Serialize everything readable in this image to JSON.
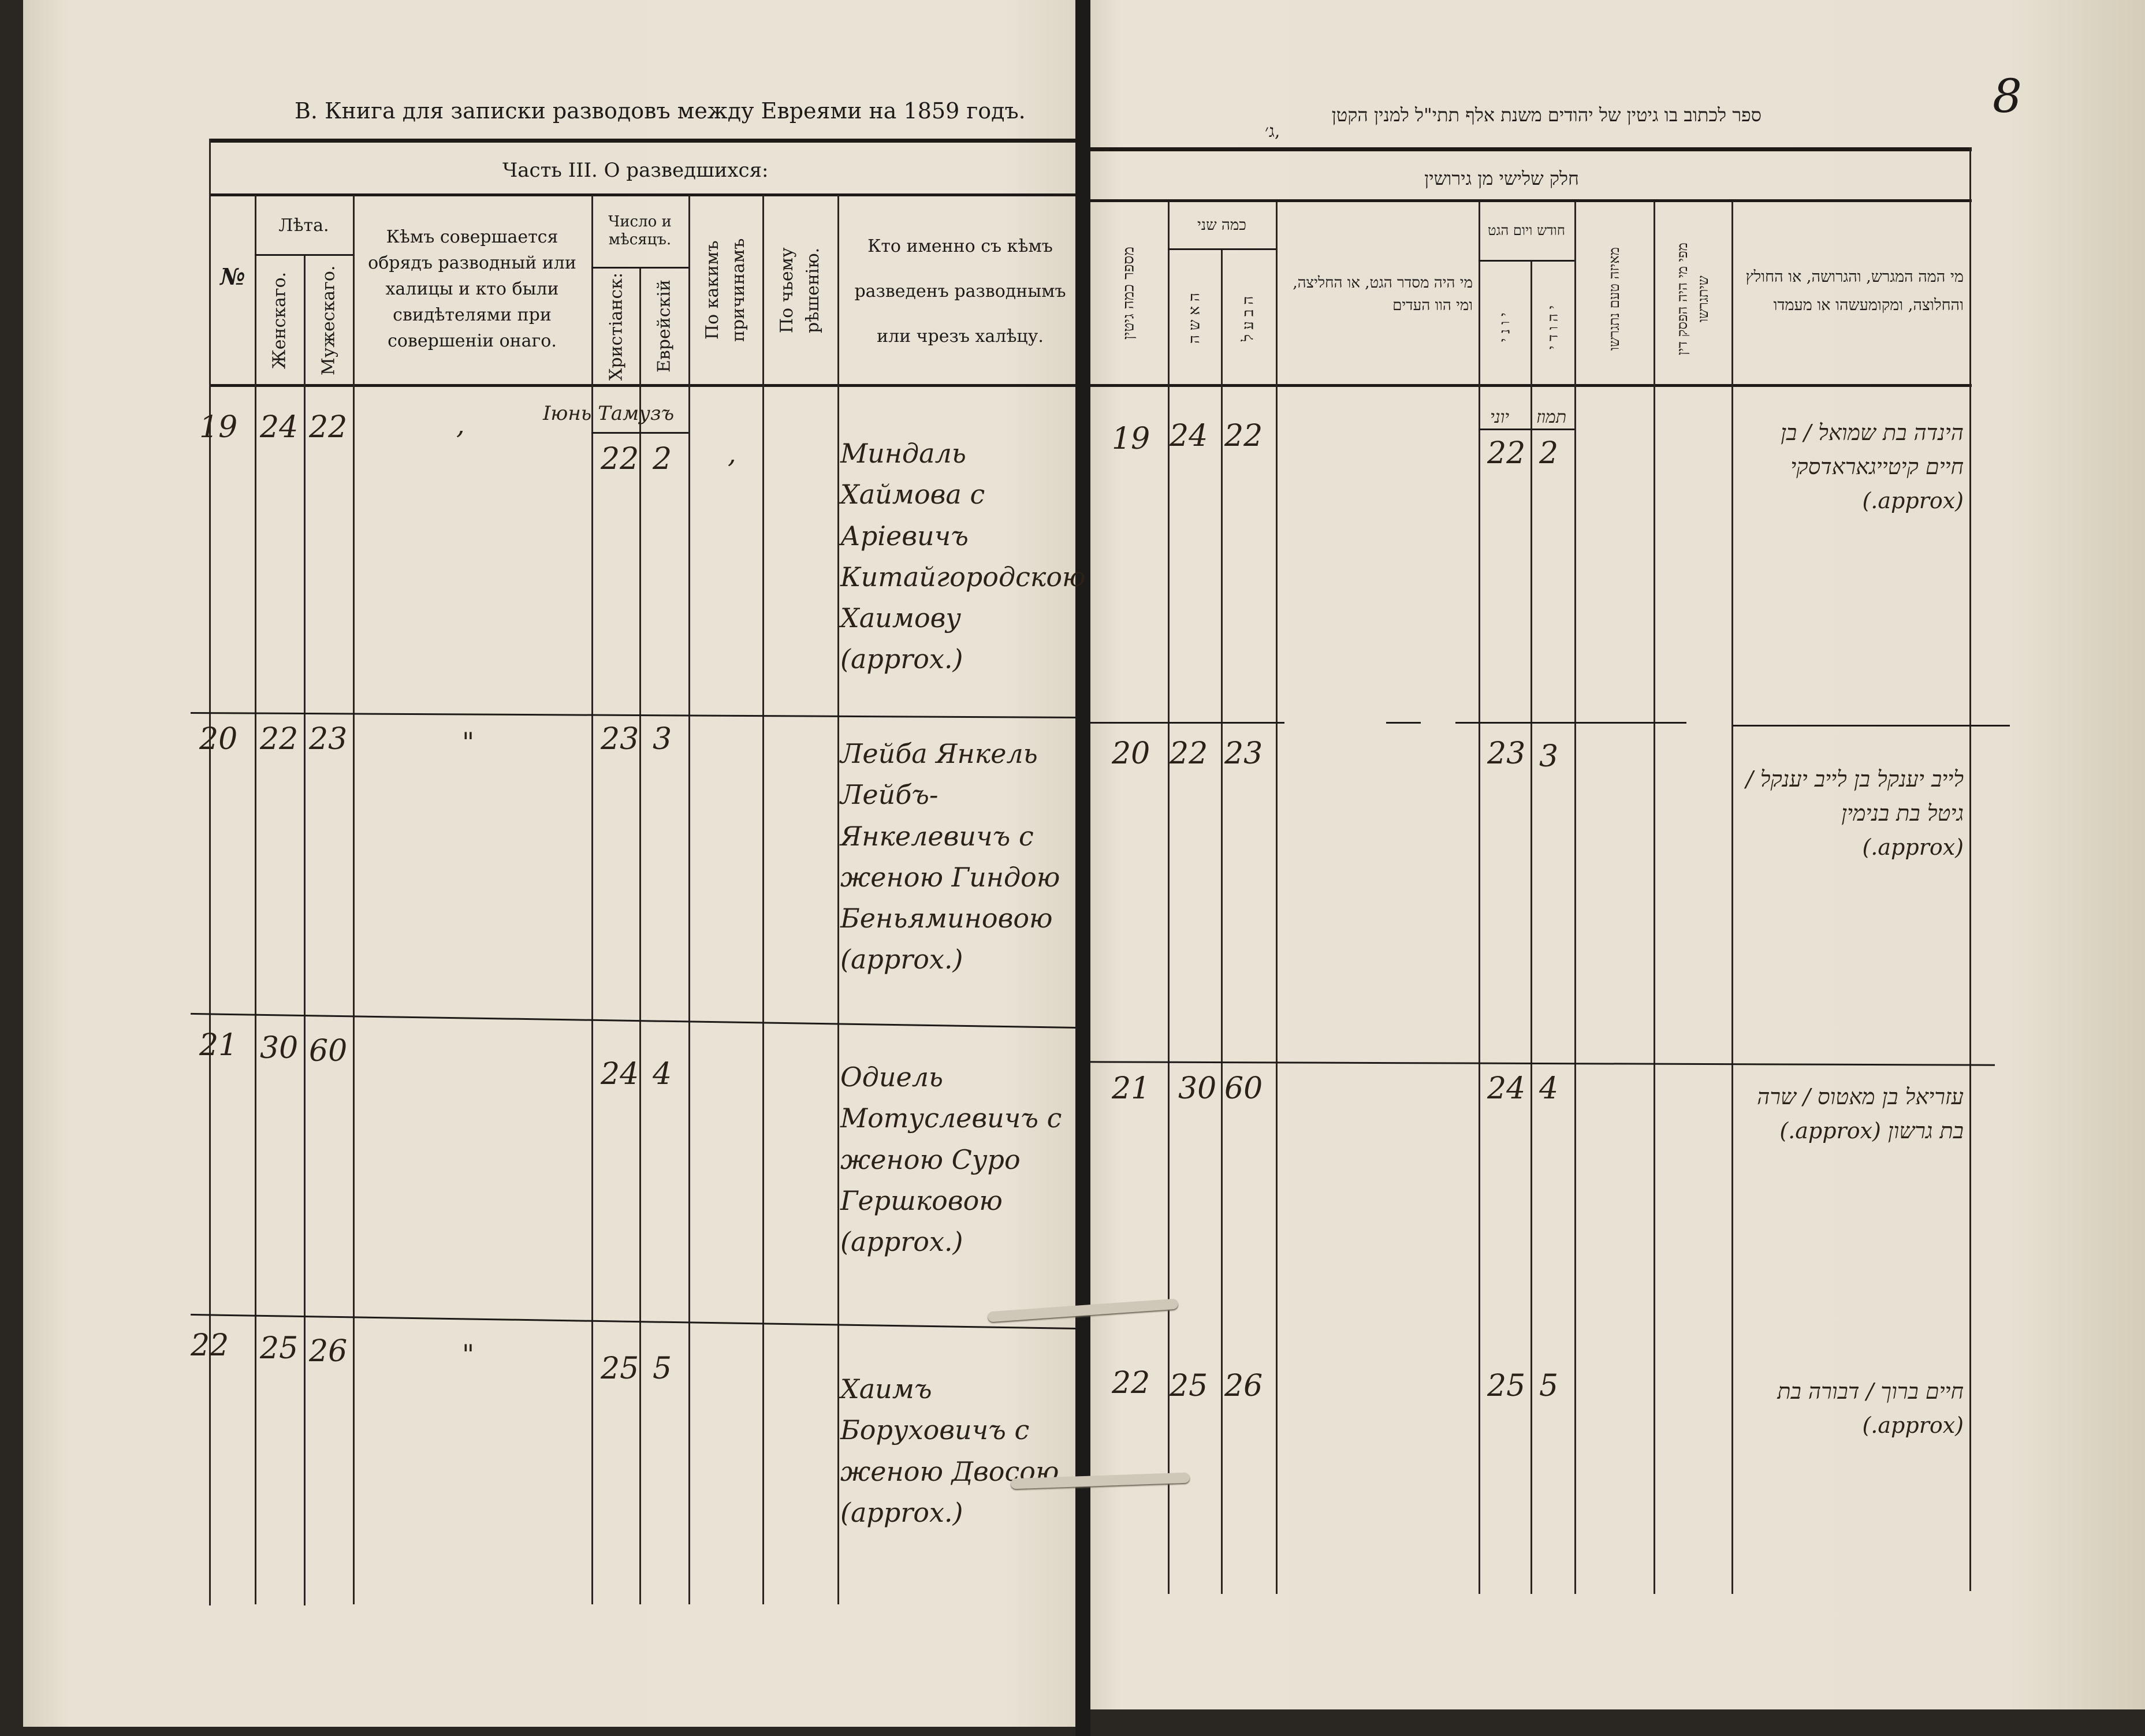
{
  "left_page": {
    "title": "В. Книга для записки разводовъ между Евреями на 1859 годъ.",
    "section": "Часть III. О разведшихся:",
    "headers": {
      "number": "№",
      "ages": "Лѣта.",
      "female": "Женскаго.",
      "male": "Мужескаго.",
      "officiant": "Кѣмъ совершается обрядъ разводный или халицы и кто были свидѣтелями при совершеніи онаго.",
      "date": "Число и мѣсяцъ.",
      "christian": "Христіанск:",
      "jewish": "Еврейскій",
      "reasons": "По какимъ причинамъ",
      "decision": "По чьему рѣшенію.",
      "who": "Кто именно съ кѣмъ разведенъ разводнымъ или чрезъ халѣцу."
    },
    "month_note": "Іюнь Тамузъ",
    "rows": [
      {
        "no": "19",
        "female": "24",
        "male": "22",
        "officiant": ",",
        "christian": "22",
        "jewish": "2",
        "reasons": ",",
        "who": "Миндаль Хаймова с Арiевичъ Китайгородскою Хаимову (approx.)"
      },
      {
        "no": "20",
        "female": "22",
        "male": "23",
        "officiant": "\"",
        "christian": "23",
        "jewish": "3",
        "reasons": "",
        "who": "Лейба Янкель Лейбъ-Янкелевичъ с женою Гиндою Беньяминовою (approx.)"
      },
      {
        "no": "21",
        "female": "30",
        "male": "60",
        "officiant": "",
        "christian": "24",
        "jewish": "4",
        "reasons": "",
        "who": "Одиель Мотуслевичъ с женою Суро Гершковою (approx.)"
      },
      {
        "no": "22",
        "female": "25",
        "male": "26",
        "officiant": "\"",
        "christian": "25",
        "jewish": "5",
        "reasons": "",
        "who": "Хаимъ Боруховичъ с женою Двосою (approx.)"
      }
    ]
  },
  "right_page": {
    "page_number": "8",
    "title": "ספר לכתוב בו גיטין של יהודים משנת אלף תתי\"ל למנין הקטן",
    "title_mark": "ג׳,",
    "section": "חלק שלישי מן גירושין",
    "headers": {
      "number": "מספר כמה גיטין",
      "ages": "כמה שני",
      "wife": "האשה",
      "husband": "הבעל",
      "officiant": "מי היה מסדר הגט, או החליצה, ומי הוו העדים",
      "date": "חודש ויום הגט",
      "gentile": "יוני",
      "jewish": "יהודי",
      "reason": "מאיזה טעם נתגרשו",
      "decision": "מפי מי היה הפסק דין שיתגרשו",
      "who": "מי המה המגרש, והגרושה, או החולץ והחלוצה, ומקומעשהו או מעמדו"
    },
    "month_note": [
      "יוני",
      "תמוז"
    ],
    "rows": [
      {
        "no": "19",
        "wife": "24",
        "husband": "22",
        "gentile": "22",
        "jewish": "2",
        "who": "הינדה בת שמואל / בן חיים קיטייגאראדסקי (approx.)"
      },
      {
        "no": "20",
        "wife": "22",
        "husband": "23",
        "gentile": "23",
        "jewish": "3",
        "who": "לייב יענקל בן לייב יענקל / גיטל בת בנימין (approx.)"
      },
      {
        "no": "21",
        "wife": "30",
        "husband": "60",
        "gentile": "24",
        "jewish": "4",
        "who": "עזריאל בן מאטוס / שרה בת גרשון (approx.)"
      },
      {
        "no": "22",
        "wife": "25",
        "husband": "26",
        "gentile": "25",
        "jewish": "5",
        "who": "חיים ברוך / דבורה בת (approx.)"
      }
    ]
  },
  "colors": {
    "paper": "#e9e3d6",
    "ink": "#1d1a17",
    "handwriting": "#2b2118",
    "spine": "#1c1b19"
  }
}
